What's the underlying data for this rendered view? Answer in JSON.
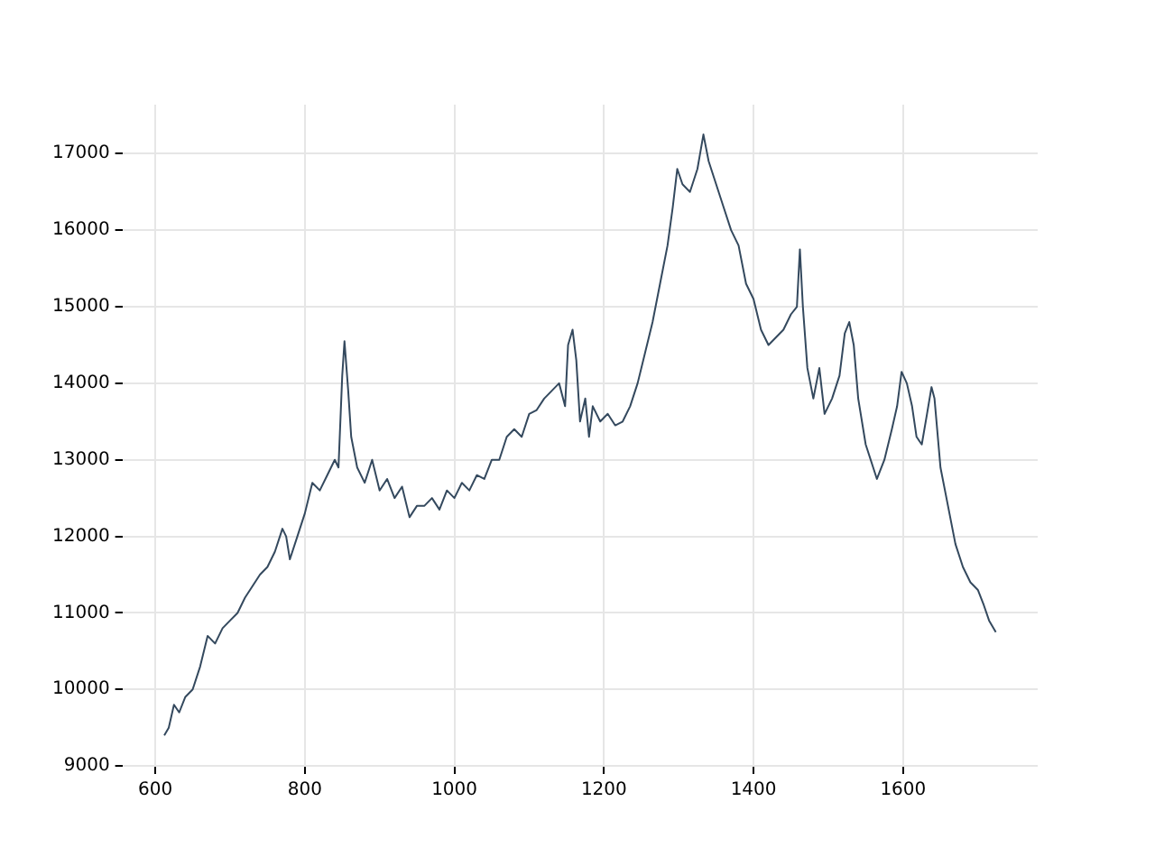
{
  "chart_data": {
    "type": "line",
    "x": [
      612,
      618,
      625,
      632,
      640,
      650,
      660,
      670,
      680,
      690,
      700,
      710,
      720,
      730,
      740,
      750,
      760,
      770,
      775,
      780,
      790,
      800,
      810,
      820,
      830,
      840,
      845,
      850,
      853,
      858,
      862,
      870,
      880,
      890,
      900,
      910,
      920,
      930,
      940,
      950,
      960,
      970,
      980,
      990,
      1000,
      1010,
      1020,
      1030,
      1040,
      1050,
      1060,
      1070,
      1080,
      1090,
      1100,
      1110,
      1120,
      1130,
      1140,
      1148,
      1152,
      1158,
      1163,
      1168,
      1175,
      1180,
      1185,
      1195,
      1205,
      1215,
      1225,
      1235,
      1245,
      1255,
      1265,
      1275,
      1285,
      1292,
      1298,
      1305,
      1315,
      1325,
      1333,
      1340,
      1350,
      1360,
      1370,
      1380,
      1390,
      1400,
      1410,
      1420,
      1430,
      1440,
      1450,
      1458,
      1462,
      1466,
      1472,
      1480,
      1488,
      1495,
      1505,
      1515,
      1522,
      1528,
      1534,
      1540,
      1550,
      1560,
      1565,
      1575,
      1585,
      1592,
      1598,
      1605,
      1612,
      1618,
      1625,
      1632,
      1638,
      1642,
      1650,
      1660,
      1670,
      1680,
      1690,
      1700,
      1708,
      1715,
      1724
    ],
    "series": [
      {
        "color": "#34495e",
        "values": [
          9400,
          9500,
          9800,
          9700,
          9900,
          10000,
          10300,
          10700,
          10600,
          10800,
          10900,
          11000,
          11200,
          11350,
          11500,
          11600,
          11800,
          12100,
          12000,
          11700,
          12000,
          12300,
          12700,
          12600,
          12800,
          13000,
          12900,
          14100,
          14550,
          13900,
          13300,
          12900,
          12700,
          13000,
          12600,
          12750,
          12500,
          12650,
          12250,
          12400,
          12400,
          12500,
          12350,
          12600,
          12500,
          12700,
          12600,
          12800,
          12750,
          13000,
          13000,
          13300,
          13400,
          13300,
          13600,
          13650,
          13800,
          13900,
          14000,
          13700,
          14500,
          14700,
          14300,
          13500,
          13800,
          13300,
          13700,
          13500,
          13600,
          13450,
          13500,
          13700,
          14000,
          14400,
          14800,
          15300,
          15800,
          16300,
          16800,
          16600,
          16500,
          16800,
          17250,
          16900,
          16600,
          16300,
          16000,
          15800,
          15300,
          15100,
          14700,
          14500,
          14600,
          14700,
          14900,
          15000,
          15750,
          15000,
          14200,
          13800,
          14200,
          13600,
          13800,
          14100,
          14650,
          14800,
          14500,
          13800,
          13200,
          12900,
          12750,
          13000,
          13400,
          13700,
          14150,
          14000,
          13700,
          13300,
          13200,
          13600,
          13950,
          13800,
          12900,
          12400,
          11900,
          11600,
          11400,
          11300,
          11100,
          10900,
          10750
        ]
      }
    ],
    "xlim": [
      556,
      1780
    ],
    "xticks": [
      600,
      800,
      1000,
      1200,
      1400,
      1600
    ],
    "ylim": [
      8990,
      17640
    ],
    "yticks": [
      9000,
      10000,
      11000,
      12000,
      13000,
      14000,
      15000,
      16000,
      17000
    ],
    "grid": true,
    "legend": false,
    "marker": "none",
    "line_style": "solid"
  }
}
